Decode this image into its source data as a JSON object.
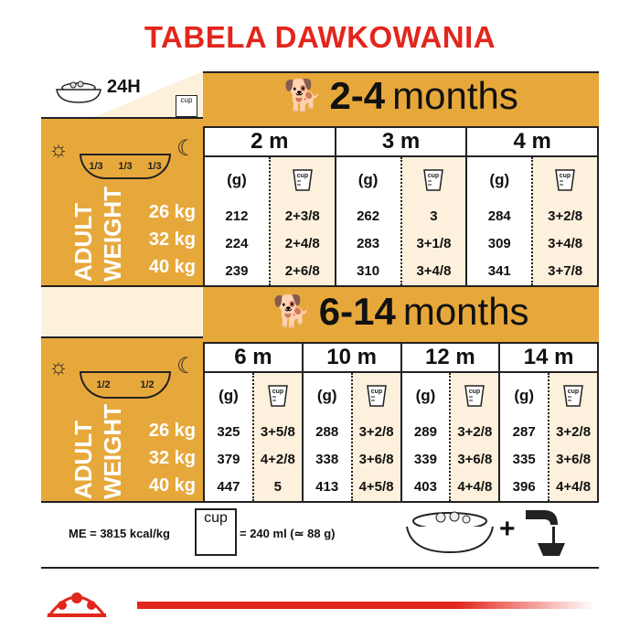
{
  "title": "TABELA DAWKOWANIA",
  "corner": {
    "label": "24H",
    "cup": "cup"
  },
  "colors": {
    "gold": "#e7a83b",
    "cream": "#fdf1dc",
    "red": "#e2261c"
  },
  "weight_label": [
    "ADULT",
    "WEIGHT"
  ],
  "weights": [
    "26 kg",
    "32 kg",
    "40 kg"
  ],
  "units": {
    "g": "(g)",
    "cup": "cup"
  },
  "section1": {
    "range": "2-4",
    "unit": "months",
    "split": [
      "1/3",
      "1/3",
      "1/3"
    ],
    "columns": [
      {
        "month": "2 m",
        "grams": [
          "212",
          "224",
          "239"
        ],
        "cups": [
          "2+3/8",
          "2+4/8",
          "2+6/8"
        ]
      },
      {
        "month": "3 m",
        "grams": [
          "262",
          "283",
          "310"
        ],
        "cups": [
          "3",
          "3+1/8",
          "3+4/8"
        ]
      },
      {
        "month": "4 m",
        "grams": [
          "284",
          "309",
          "341"
        ],
        "cups": [
          "3+2/8",
          "3+4/8",
          "3+7/8"
        ]
      }
    ]
  },
  "section2": {
    "range": "6-14",
    "unit": "months",
    "split": [
      "1/2",
      "1/2"
    ],
    "columns": [
      {
        "month": "6 m",
        "grams": [
          "325",
          "379",
          "447"
        ],
        "cups": [
          "3+5/8",
          "4+2/8",
          "5"
        ]
      },
      {
        "month": "10 m",
        "grams": [
          "288",
          "338",
          "413"
        ],
        "cups": [
          "3+2/8",
          "3+6/8",
          "4+5/8"
        ]
      },
      {
        "month": "12 m",
        "grams": [
          "289",
          "339",
          "403"
        ],
        "cups": [
          "3+2/8",
          "3+6/8",
          "4+4/8"
        ]
      },
      {
        "month": "14 m",
        "grams": [
          "287",
          "335",
          "396"
        ],
        "cups": [
          "3+2/8",
          "3+6/8",
          "4+4/8"
        ]
      }
    ]
  },
  "footer": {
    "energy": "ME = 3815 kcal/kg",
    "cup": "cup",
    "cup_equiv": "= 240 ml (≃ 88 g)",
    "plus": "+"
  }
}
